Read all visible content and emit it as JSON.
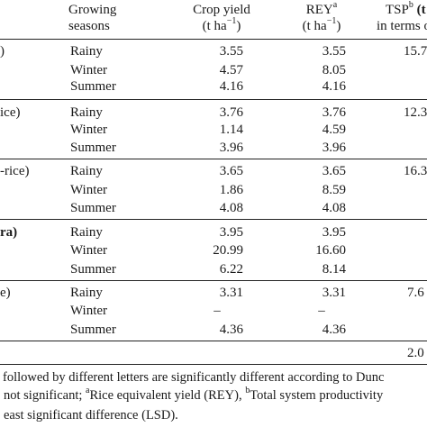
{
  "header": {
    "season_line1": "Growing",
    "season_line2": "seasons",
    "crop_yield_line1": "Crop yield",
    "crop_yield_unit_pre": "(t ha",
    "crop_yield_unit_exp": "−1",
    "crop_yield_unit_post": ")",
    "rey_label": "REY",
    "rey_sup": "a",
    "rey_unit_pre": "(t ha",
    "rey_unit_exp": "−1",
    "rey_unit_post": ")",
    "tsp_label": "TSP",
    "tsp_sup": "b",
    "tsp_suffix": " (t",
    "tsp_line2": "in terms o"
  },
  "groups": [
    {
      "label_fragment": ")",
      "tsp": "15.7",
      "rows": [
        {
          "season": "Rainy",
          "crop_yield": "3.55",
          "rey": "3.55"
        },
        {
          "season": "Winter",
          "crop_yield": "4.57",
          "rey": "8.05"
        },
        {
          "season": "Summer",
          "crop_yield": "4.16",
          "rey": "4.16"
        }
      ]
    },
    {
      "label_fragment": "ice)",
      "tsp": "12.3",
      "rows": [
        {
          "season": "Rainy",
          "crop_yield": "3.76",
          "rey": "3.76"
        },
        {
          "season": "Winter",
          "crop_yield": "1.14",
          "rey": "4.59"
        },
        {
          "season": "Summer",
          "crop_yield": "3.96",
          "rey": "3.96"
        }
      ]
    },
    {
      "label_fragment": "-rice)",
      "tsp": "16.3",
      "rows": [
        {
          "season": "Rainy",
          "crop_yield": "3.65",
          "rey": "3.65"
        },
        {
          "season": "Winter",
          "crop_yield": "1.86",
          "rey": "8.59"
        },
        {
          "season": "Summer",
          "crop_yield": "4.08",
          "rey": "4.08"
        }
      ]
    },
    {
      "label_fragment": "ra)",
      "tsp": "",
      "rows": [
        {
          "season": "Rainy",
          "crop_yield": "3.95",
          "rey": "3.95"
        },
        {
          "season": "Winter",
          "crop_yield": "20.99",
          "rey": "16.60"
        },
        {
          "season": "Summer",
          "crop_yield": "6.22",
          "rey": "8.14"
        }
      ]
    },
    {
      "label_fragment": "e)",
      "tsp": "7.6",
      "rows": [
        {
          "season": "Rainy",
          "crop_yield": "3.31",
          "rey": "3.31"
        },
        {
          "season": "Winter",
          "crop_yield": "–",
          "rey": "–"
        },
        {
          "season": "Summer",
          "crop_yield": "4.36",
          "rey": "4.36"
        }
      ]
    }
  ],
  "lsd_value": "2.0",
  "footnotes": {
    "line1": "followed by different letters are significantly different according to Dunc",
    "line2_pre": "not significant; ",
    "line2_sup_a": "a",
    "line2_mid": "Rice equivalent yield (REY), ",
    "line2_sup_b": "b",
    "line2_post": "Total system productivity",
    "line3": "east significant difference (LSD)."
  }
}
